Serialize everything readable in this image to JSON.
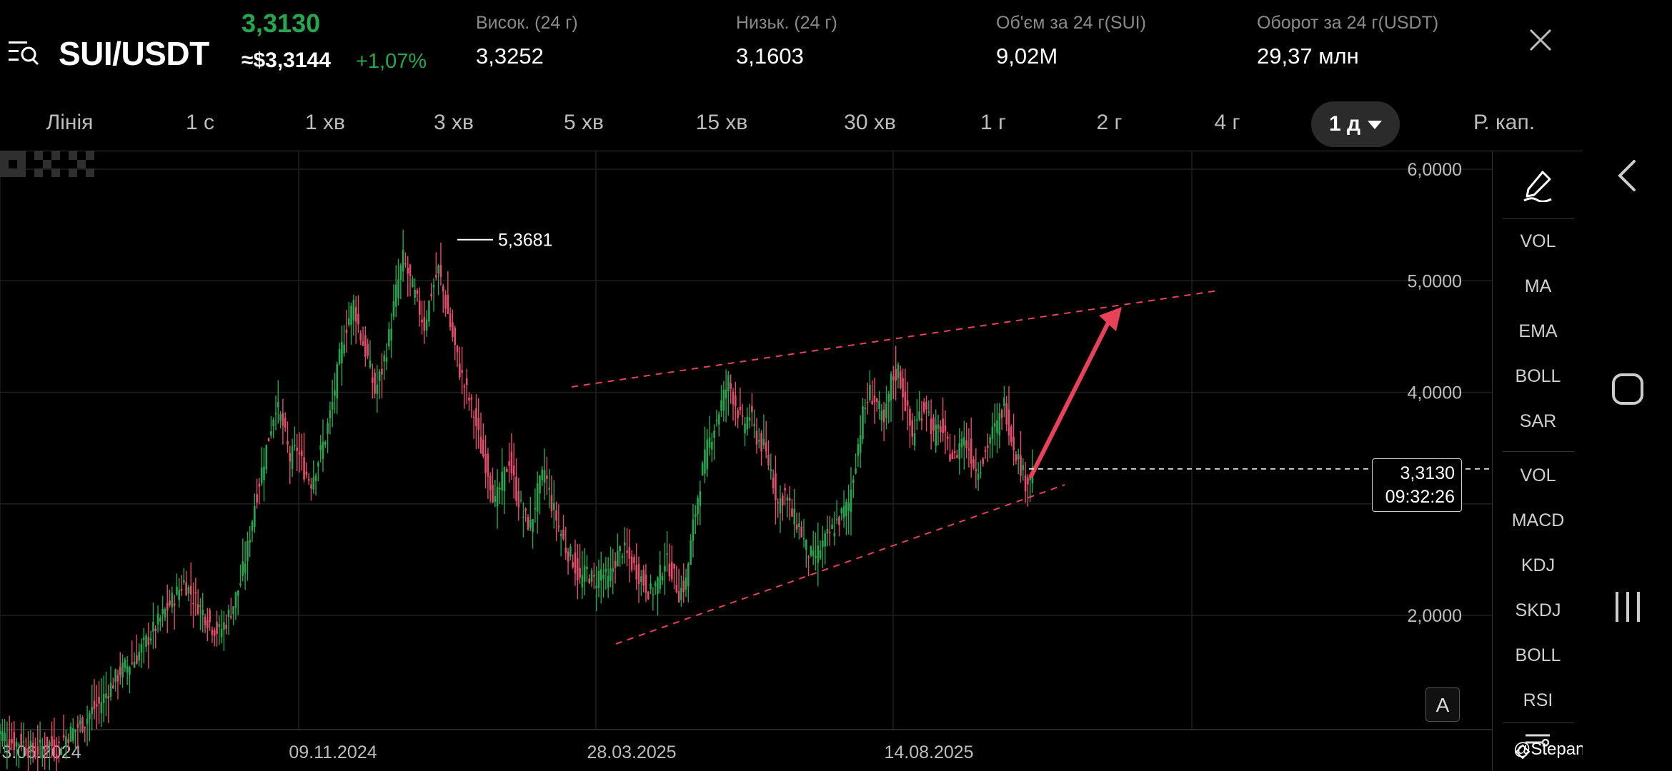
{
  "header": {
    "pair": "SUI/USDT",
    "last_price": "3,3130",
    "usd_price": "≈$3,3144",
    "change": "+1,07%",
    "stats": [
      {
        "label": "Висок. (24 г)",
        "value": "3,3252"
      },
      {
        "label": "Низьк. (24 г)",
        "value": "3,1603"
      },
      {
        "label": "Об'єм за 24 г(SUI)",
        "value": "9,02M"
      },
      {
        "label": "Оборот за 24 г(USDT)",
        "value": "29,37 млн"
      }
    ]
  },
  "tabs": [
    {
      "label": "Лінія"
    },
    {
      "label": "1 с"
    },
    {
      "label": "1 хв"
    },
    {
      "label": "3 хв"
    },
    {
      "label": "5 хв"
    },
    {
      "label": "15 хв"
    },
    {
      "label": "30 хв"
    },
    {
      "label": "1 г"
    },
    {
      "label": "2 г"
    },
    {
      "label": "4 г"
    },
    {
      "label": "1 д",
      "active": true
    },
    {
      "label": "Р. кап."
    }
  ],
  "indicators": {
    "main": [
      "VOL",
      "MA",
      "EMA",
      "BOLL",
      "SAR"
    ],
    "sub": [
      "VOL",
      "MACD",
      "KDJ",
      "SKDJ",
      "BOLL",
      "RSI"
    ]
  },
  "price_tag": {
    "price": "3,3130",
    "countdown": "09:32:26"
  },
  "auto_label": "A",
  "credit": "@Stepan the Cat",
  "colors": {
    "up": "#25a750",
    "down": "#e54d6d",
    "trend": "#e8415a",
    "accent_green": "#25a750"
  },
  "chart_data": {
    "type": "candlestick",
    "y_ticks": [
      "6,0000",
      "5,0000",
      "4,0000",
      "2,0000"
    ],
    "x_ticks": [
      "3.06.2024",
      "09.11.2024",
      "28.03.2025",
      "14.08.2025"
    ],
    "ylim": [
      1.0,
      6.0
    ],
    "high_label": "5,3681",
    "high_value": 5.3681,
    "current_price": 3.313,
    "grid": true,
    "series_close": [
      0.95,
      0.9,
      0.85,
      0.88,
      0.8,
      0.78,
      0.82,
      0.85,
      0.8,
      0.9,
      0.95,
      1.0,
      1.05,
      1.15,
      1.2,
      1.3,
      1.4,
      1.5,
      1.55,
      1.6,
      1.7,
      1.8,
      1.9,
      2.0,
      2.1,
      2.2,
      2.3,
      2.2,
      2.1,
      2.0,
      1.9,
      1.85,
      1.95,
      2.1,
      2.3,
      2.6,
      3.0,
      3.3,
      3.6,
      3.9,
      3.7,
      3.4,
      3.5,
      3.3,
      3.2,
      3.4,
      3.6,
      3.9,
      4.3,
      4.6,
      4.8,
      4.5,
      4.3,
      4.0,
      4.2,
      4.5,
      4.9,
      5.2,
      5.0,
      4.8,
      4.6,
      4.9,
      5.1,
      4.8,
      4.5,
      4.2,
      4.0,
      3.8,
      3.5,
      3.3,
      3.0,
      3.2,
      3.4,
      3.1,
      2.9,
      2.8,
      3.1,
      3.3,
      3.0,
      2.8,
      2.6,
      2.5,
      2.3,
      2.4,
      2.3,
      2.4,
      2.3,
      2.5,
      2.6,
      2.5,
      2.4,
      2.3,
      2.2,
      2.3,
      2.5,
      2.4,
      2.2,
      2.3,
      2.8,
      3.2,
      3.5,
      3.7,
      3.9,
      4.1,
      3.9,
      3.7,
      3.8,
      3.6,
      3.5,
      3.3,
      3.0,
      3.1,
      2.9,
      2.8,
      2.6,
      2.5,
      2.6,
      2.7,
      2.8,
      2.9,
      3.0,
      3.4,
      3.8,
      4.0,
      3.9,
      3.7,
      4.1,
      4.2,
      3.9,
      3.6,
      3.8,
      3.9,
      3.6,
      3.7,
      3.5,
      3.4,
      3.6,
      3.5,
      3.3,
      3.4,
      3.6,
      3.7,
      3.9,
      3.6,
      3.4,
      3.2,
      3.3
    ]
  }
}
